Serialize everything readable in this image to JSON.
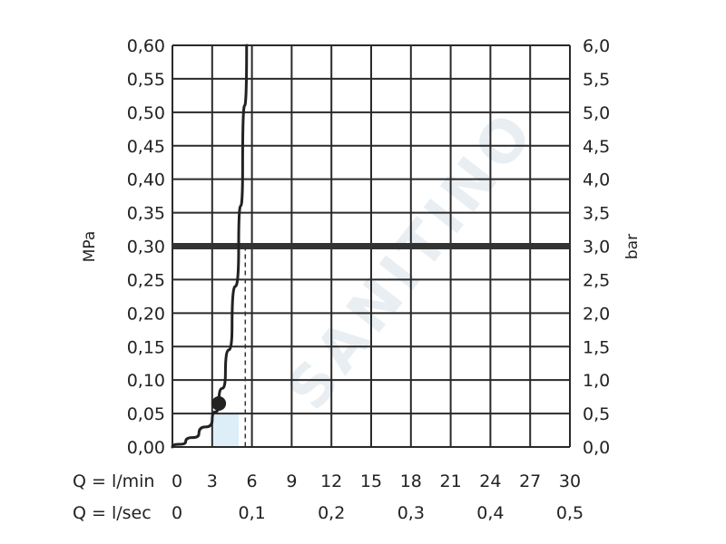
{
  "chart_data": {
    "type": "line",
    "y_left_label": "MPa",
    "y_right_label": "bar",
    "y_left_ticks": [
      "0,00",
      "0,05",
      "0,10",
      "0,15",
      "0,20",
      "0,25",
      "0,30",
      "0,35",
      "0,40",
      "0,45",
      "0,50",
      "0,55",
      "0,60"
    ],
    "y_right_ticks": [
      "0,0",
      "0,5",
      "1,0",
      "1,5",
      "2,0",
      "2,5",
      "3,0",
      "3,5",
      "4,0",
      "4,5",
      "5,0",
      "5,5",
      "6,0"
    ],
    "x_rows": [
      {
        "label": "Q = l/min",
        "ticks": [
          "0",
          "3",
          "6",
          "9",
          "12",
          "15",
          "18",
          "21",
          "24",
          "27",
          "30"
        ],
        "values": [
          0,
          3,
          6,
          9,
          12,
          15,
          18,
          21,
          24,
          27,
          30
        ]
      },
      {
        "label": "Q = l/sec",
        "ticks": [
          "0",
          "0,1",
          "0,2",
          "0,3",
          "0,4",
          "0,5"
        ],
        "values": [
          0,
          6,
          12,
          18,
          24,
          30
        ]
      }
    ],
    "xlim": [
      0,
      30
    ],
    "ylim": [
      0,
      0.6
    ],
    "grid": true,
    "series": [
      {
        "x": [
          0,
          1,
          2,
          3,
          3.5,
          4,
          4.5,
          5,
          5.3,
          5.6
        ],
        "y": [
          0,
          0.008,
          0.02,
          0.04,
          0.065,
          0.11,
          0.18,
          0.3,
          0.42,
          0.6
        ],
        "color": "#222222"
      }
    ],
    "marker": {
      "x": 3.5,
      "y": 0.065
    },
    "reference_line": {
      "y": 0.3,
      "color": "#333333"
    },
    "dashed_drop": {
      "x": 5.5,
      "from_y": 0.3,
      "to_y": 0
    },
    "shaded_region": {
      "x": [
        3,
        5
      ],
      "y": [
        0,
        0.05
      ],
      "color": "#ddeef8"
    },
    "watermark": "SANITINO"
  }
}
